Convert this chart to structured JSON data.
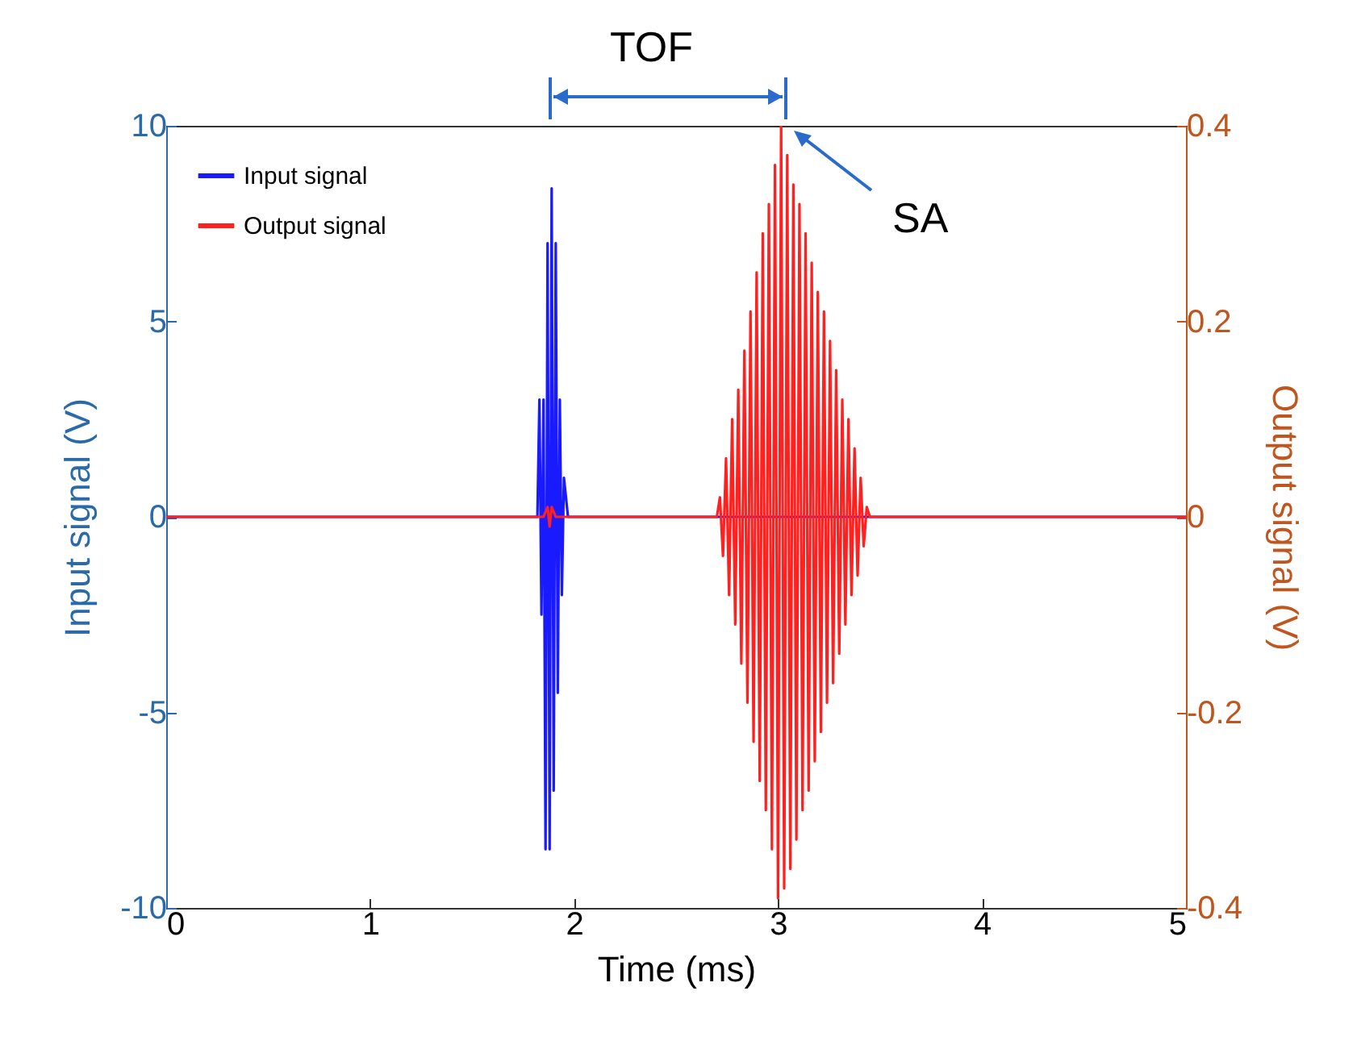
{
  "chart_data": {
    "type": "line",
    "xlabel": "Time (ms)",
    "ylabel": "Input signal (V)",
    "y2label": "Output signal (V)",
    "xlim": [
      0,
      5
    ],
    "xticks": [
      0,
      1,
      2,
      3,
      4,
      5
    ],
    "ylim": [
      -10,
      10
    ],
    "yticks": [
      -10,
      -5,
      0,
      5,
      10
    ],
    "y2lim": [
      -0.4,
      0.4
    ],
    "y2ticks": [
      -0.4,
      -0.2,
      0,
      0.2,
      0.4
    ],
    "legend": "top left",
    "grid": false,
    "marker": "none",
    "line_style": "solid",
    "annotations": [
      "TOF",
      "SA"
    ],
    "series": [
      {
        "name": "Input signal",
        "color": "#1a1aff",
        "x": [
          0,
          1.82,
          1.83,
          1.84,
          1.85,
          1.86,
          1.87,
          1.88,
          1.89,
          1.9,
          1.91,
          1.92,
          1.93,
          1.94,
          1.95,
          1.97,
          5
        ],
        "values": [
          0,
          0,
          3,
          -2.5,
          3,
          -8.5,
          7,
          -8.5,
          8.4,
          -7,
          7,
          -4.5,
          3,
          -2,
          1,
          0,
          0
        ]
      },
      {
        "name": "Output signal",
        "color": "#ff2020",
        "axis": "y2",
        "x": [
          0,
          1.85,
          1.87,
          1.88,
          1.89,
          1.91,
          2.7,
          2.715,
          2.73,
          2.745,
          2.76,
          2.775,
          2.79,
          2.805,
          2.82,
          2.835,
          2.85,
          2.865,
          2.88,
          2.895,
          2.91,
          2.925,
          2.94,
          2.955,
          2.97,
          2.985,
          3.0,
          3.015,
          3.03,
          3.045,
          3.06,
          3.075,
          3.09,
          3.105,
          3.12,
          3.135,
          3.15,
          3.165,
          3.18,
          3.195,
          3.21,
          3.225,
          3.24,
          3.255,
          3.27,
          3.285,
          3.3,
          3.315,
          3.33,
          3.345,
          3.36,
          3.375,
          3.39,
          3.405,
          3.42,
          3.435,
          3.45,
          5
        ],
        "values": [
          0,
          0,
          0.01,
          -0.01,
          0.01,
          0,
          0,
          0.02,
          -0.04,
          0.06,
          -0.08,
          0.1,
          -0.11,
          0.13,
          -0.15,
          0.17,
          -0.19,
          0.21,
          -0.23,
          0.25,
          -0.27,
          0.29,
          -0.3,
          0.32,
          -0.34,
          0.36,
          -0.39,
          0.4,
          -0.38,
          0.37,
          -0.36,
          0.34,
          -0.33,
          0.32,
          -0.3,
          0.29,
          -0.28,
          0.26,
          -0.25,
          0.23,
          -0.22,
          0.21,
          -0.19,
          0.18,
          -0.17,
          0.15,
          -0.14,
          0.12,
          -0.11,
          0.1,
          -0.08,
          0.07,
          -0.06,
          0.04,
          -0.03,
          0.01,
          0,
          0
        ]
      }
    ]
  }
}
